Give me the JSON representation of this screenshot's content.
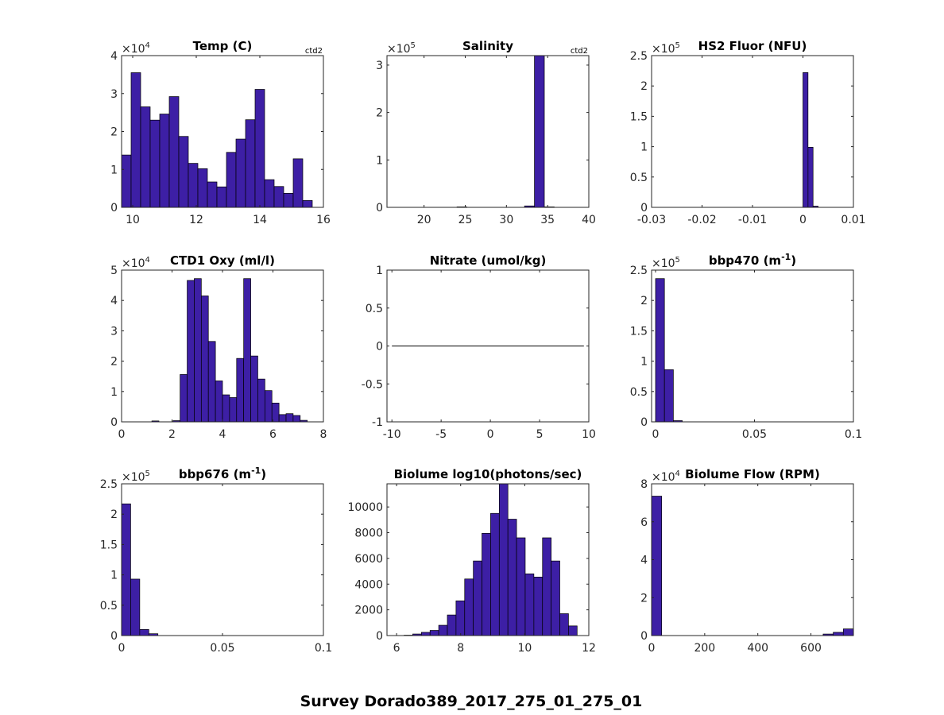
{
  "figure_title": "Survey Dorado389_2017_275_01_275_01",
  "colors": {
    "bar_fill": "#3d1fa5",
    "bar_edge": "#000000",
    "axis": "#262626"
  },
  "chart_data": [
    {
      "id": "temp",
      "type": "bar",
      "title": "Temp (C)",
      "corner_label": "ctd2",
      "bin_width": 0.3,
      "bins": [
        [
          9.8,
          1.38
        ],
        [
          10.1,
          3.55
        ],
        [
          10.4,
          2.65
        ],
        [
          10.7,
          2.3
        ],
        [
          11.0,
          2.46
        ],
        [
          11.3,
          2.92
        ],
        [
          11.6,
          1.87
        ],
        [
          11.9,
          1.16
        ],
        [
          12.2,
          1.02
        ],
        [
          12.5,
          0.67
        ],
        [
          12.8,
          0.54
        ],
        [
          13.1,
          1.45
        ],
        [
          13.4,
          1.8
        ],
        [
          13.7,
          2.31
        ],
        [
          14.0,
          3.11
        ],
        [
          14.3,
          0.73
        ],
        [
          14.6,
          0.55
        ],
        [
          14.9,
          0.37
        ],
        [
          15.2,
          1.28
        ],
        [
          15.5,
          0.18
        ]
      ],
      "xlim": [
        9.65,
        16
      ],
      "ylim": [
        0,
        4
      ],
      "xticks": [
        10,
        12,
        14,
        16
      ],
      "xtick_labels": [
        "10",
        "12",
        "14",
        "16"
      ],
      "yticks": [
        0,
        1,
        2,
        3,
        4
      ],
      "ytick_labels": [
        "0",
        "1",
        "2",
        "3",
        "4"
      ],
      "multiplier": "×10",
      "exponent": "4"
    },
    {
      "id": "salinity",
      "type": "bar",
      "title": "Salinity",
      "corner_label": "ctd2",
      "bin_width": 1.2,
      "bins": [
        [
          24.6,
          0.01
        ],
        [
          32.8,
          0.03
        ],
        [
          34.0,
          3.2
        ],
        [
          35.2,
          0.01
        ]
      ],
      "xlim": [
        15.5,
        40
      ],
      "ylim": [
        0,
        3.2
      ],
      "xticks": [
        20,
        25,
        30,
        35,
        40
      ],
      "xtick_labels": [
        "20",
        "25",
        "30",
        "35",
        "40"
      ],
      "yticks": [
        0,
        1,
        2,
        3
      ],
      "ytick_labels": [
        "0",
        "1",
        "2",
        "3"
      ],
      "multiplier": "×10",
      "exponent": "5"
    },
    {
      "id": "hs2fluor",
      "type": "bar",
      "title": "HS2 Fluor (NFU)",
      "corner_label": "",
      "bin_width": 0.001,
      "bins": [
        [
          0.0005,
          2.22
        ],
        [
          0.0015,
          0.99
        ],
        [
          0.0025,
          0.02
        ]
      ],
      "xlim": [
        -0.03,
        0.01
      ],
      "ylim": [
        0,
        2.5
      ],
      "xticks": [
        -0.03,
        -0.02,
        -0.01,
        0,
        0.01
      ],
      "xtick_labels": [
        "-0.03",
        "-0.02",
        "-0.01",
        "0",
        "0.01"
      ],
      "yticks": [
        0,
        0.5,
        1,
        1.5,
        2,
        2.5
      ],
      "ytick_labels": [
        "0",
        "0.5",
        "1",
        "1.5",
        "2",
        "2.5"
      ],
      "multiplier": "×10",
      "exponent": "5"
    },
    {
      "id": "oxy",
      "type": "bar",
      "title": "CTD1 Oxy (ml/l)",
      "corner_label": "",
      "bin_width": 0.28,
      "bins": [
        [
          1.34,
          0.03
        ],
        [
          2.18,
          0.04
        ],
        [
          2.46,
          1.56
        ],
        [
          2.74,
          4.66
        ],
        [
          3.02,
          4.72
        ],
        [
          3.3,
          4.15
        ],
        [
          3.58,
          2.65
        ],
        [
          3.86,
          1.35
        ],
        [
          4.14,
          0.89
        ],
        [
          4.42,
          0.8
        ],
        [
          4.7,
          2.09
        ],
        [
          4.98,
          4.72
        ],
        [
          5.26,
          2.17
        ],
        [
          5.54,
          1.41
        ],
        [
          5.82,
          1.03
        ],
        [
          6.1,
          0.62
        ],
        [
          6.38,
          0.24
        ],
        [
          6.66,
          0.27
        ],
        [
          6.94,
          0.21
        ],
        [
          7.22,
          0.05
        ]
      ],
      "xlim": [
        0,
        8
      ],
      "ylim": [
        0,
        5
      ],
      "xticks": [
        0,
        2,
        4,
        6,
        8
      ],
      "xtick_labels": [
        "0",
        "2",
        "4",
        "6",
        "8"
      ],
      "yticks": [
        0,
        1,
        2,
        3,
        4,
        5
      ],
      "ytick_labels": [
        "0",
        "1",
        "2",
        "3",
        "4",
        "5"
      ],
      "multiplier": "×10",
      "exponent": "4"
    },
    {
      "id": "nitrate",
      "type": "line",
      "title": "Nitrate (umol/kg)",
      "corner_label": "",
      "line": [
        [
          -10,
          0
        ],
        [
          9.5,
          0
        ]
      ],
      "xlim": [
        -10.5,
        10
      ],
      "ylim": [
        -1,
        1
      ],
      "xticks": [
        -10,
        -5,
        0,
        5,
        10
      ],
      "xtick_labels": [
        "-10",
        "-5",
        "0",
        "5",
        "10"
      ],
      "yticks": [
        -1,
        -0.5,
        0,
        0.5,
        1
      ],
      "ytick_labels": [
        "-1",
        "-0.5",
        "0",
        "0.5",
        "1"
      ],
      "multiplier": "",
      "exponent": ""
    },
    {
      "id": "bbp470",
      "type": "bar",
      "title": "bbp470 (m",
      "title_sup": "-1",
      "title_end": ")",
      "corner_label": "",
      "bin_width": 0.0045,
      "bins": [
        [
          0.00225,
          2.36
        ],
        [
          0.00675,
          0.86
        ],
        [
          0.01125,
          0.02
        ]
      ],
      "xlim": [
        -0.002,
        0.1
      ],
      "ylim": [
        0,
        2.5
      ],
      "xticks": [
        0,
        0.05,
        0.1
      ],
      "xtick_labels": [
        "0",
        "0.05",
        "0.1"
      ],
      "yticks": [
        0,
        0.5,
        1,
        1.5,
        2,
        2.5
      ],
      "ytick_labels": [
        "0",
        "0.5",
        "1",
        "1.5",
        "2",
        "2.5"
      ],
      "multiplier": "×10",
      "exponent": "5"
    },
    {
      "id": "bbp676",
      "type": "bar",
      "title": "bbp676 (m",
      "title_sup": "-1",
      "title_end": ")",
      "corner_label": "",
      "bin_width": 0.0045,
      "bins": [
        [
          0.00225,
          2.17
        ],
        [
          0.00675,
          0.93
        ],
        [
          0.01125,
          0.1
        ],
        [
          0.01575,
          0.03
        ]
      ],
      "xlim": [
        0,
        0.1
      ],
      "ylim": [
        0,
        2.5
      ],
      "xticks": [
        0,
        0.05,
        0.1
      ],
      "xtick_labels": [
        "0",
        "0.05",
        "0.1"
      ],
      "yticks": [
        0,
        0.5,
        1,
        1.5,
        2,
        2.5
      ],
      "ytick_labels": [
        "0",
        "0.5",
        "1",
        "1.5",
        "2",
        "2.5"
      ],
      "multiplier": "×10",
      "exponent": "5"
    },
    {
      "id": "biolume",
      "type": "bar",
      "title": "Biolume log10(photons/sec)",
      "corner_label": "",
      "bin_width": 0.27,
      "bins": [
        [
          6.37,
          30
        ],
        [
          6.64,
          120
        ],
        [
          6.91,
          250
        ],
        [
          7.18,
          400
        ],
        [
          7.45,
          800
        ],
        [
          7.72,
          1600
        ],
        [
          7.99,
          2700
        ],
        [
          8.26,
          4400
        ],
        [
          8.53,
          5800
        ],
        [
          8.8,
          7950
        ],
        [
          9.07,
          9500
        ],
        [
          9.34,
          11800
        ],
        [
          9.61,
          9050
        ],
        [
          9.88,
          7600
        ],
        [
          10.15,
          4800
        ],
        [
          10.42,
          4550
        ],
        [
          10.69,
          7600
        ],
        [
          10.96,
          5800
        ],
        [
          11.23,
          1700
        ],
        [
          11.5,
          750
        ]
      ],
      "xlim": [
        5.7,
        12
      ],
      "ylim": [
        0,
        11800
      ],
      "xticks": [
        6,
        8,
        10,
        12
      ],
      "xtick_labels": [
        "6",
        "8",
        "10",
        "12"
      ],
      "yticks": [
        0,
        2000,
        4000,
        6000,
        8000,
        10000
      ],
      "ytick_labels": [
        "0",
        "2000",
        "4000",
        "6000",
        "8000",
        "10000"
      ],
      "multiplier": "",
      "exponent": ""
    },
    {
      "id": "flow",
      "type": "bar",
      "title": "Biolume Flow (RPM)",
      "corner_label": "",
      "bin_width": 38,
      "bins": [
        [
          19,
          7.35
        ],
        [
          665,
          0.08
        ],
        [
          703,
          0.17
        ],
        [
          741,
          0.35
        ]
      ],
      "xlim": [
        0,
        760
      ],
      "ylim": [
        0,
        8
      ],
      "xticks": [
        0,
        200,
        400,
        600
      ],
      "xtick_labels": [
        "0",
        "200",
        "400",
        "600"
      ],
      "yticks": [
        0,
        2,
        4,
        6,
        8
      ],
      "ytick_labels": [
        "0",
        "2",
        "4",
        "6",
        "8"
      ],
      "multiplier": "×10",
      "exponent": "4"
    }
  ]
}
